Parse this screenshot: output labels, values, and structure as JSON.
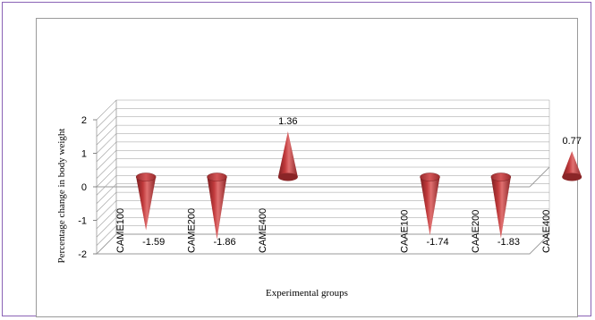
{
  "chart_data": {
    "type": "bar",
    "shape": "cone",
    "categories": [
      "CAME100",
      "CAME200",
      "CAME400",
      "CAAE100",
      "CAAE200",
      "CAAE400"
    ],
    "values": [
      -1.59,
      -1.86,
      1.36,
      -1.74,
      -1.83,
      0.77
    ],
    "data_labels": [
      "-1.59",
      "-1.86",
      "1.36",
      "-1.74",
      "-1.83",
      "0.77"
    ],
    "slots": [
      0,
      1,
      2,
      4,
      5,
      6
    ],
    "title": "",
    "xlabel": "Experimental groups",
    "ylabel": "Percentage change in body weight",
    "yticks": [
      "2",
      "1",
      "0",
      "-1",
      "-2"
    ],
    "ylim": [
      -2,
      2
    ],
    "grid": true,
    "bar_color": "#c0393b"
  }
}
